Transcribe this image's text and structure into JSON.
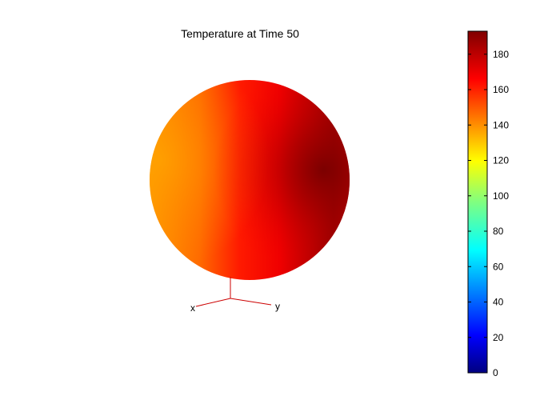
{
  "chart_data": {
    "type": "heatmap",
    "title": "Temperature at Time 50",
    "surface": "sphere",
    "colormap": "jet",
    "color_range": [
      0,
      193
    ],
    "colorbar": {
      "ticks": [
        0,
        20,
        40,
        60,
        80,
        100,
        120,
        140,
        160,
        180
      ],
      "tick_labels": [
        "0",
        "20",
        "40",
        "60",
        "80",
        "100",
        "120",
        "140",
        "160",
        "180"
      ],
      "placement": "right"
    },
    "surface_values": {
      "left_edge": 140,
      "center": 165,
      "right_hot_spot": 193
    },
    "axes_triad": {
      "labels": [
        "x",
        "y"
      ]
    },
    "colors": {
      "triad": "#cc0000",
      "colorbar_border": "#000000"
    }
  }
}
